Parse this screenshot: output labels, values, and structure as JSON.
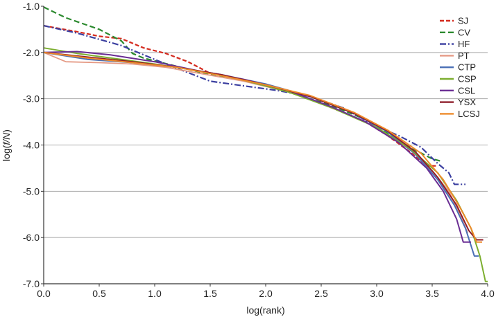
{
  "chart_data": {
    "type": "line",
    "title": "",
    "xlabel": "log(rank)",
    "ylabel_prefix": "log(",
    "ylabel_italic": "f/N",
    "ylabel_suffix": ")",
    "xlim": [
      0.0,
      4.0
    ],
    "ylim": [
      -7.0,
      -1.0
    ],
    "x_ticks": [
      {
        "value": 0.0,
        "label": "0.0"
      },
      {
        "value": 0.5,
        "label": "0.5"
      },
      {
        "value": 1.0,
        "label": "1.0"
      },
      {
        "value": 1.5,
        "label": "1.5"
      },
      {
        "value": 2.0,
        "label": "2.0"
      },
      {
        "value": 2.5,
        "label": "2.5"
      },
      {
        "value": 3.0,
        "label": "3.0"
      },
      {
        "value": 3.5,
        "label": "3.5"
      },
      {
        "value": 4.0,
        "label": "4.0"
      }
    ],
    "y_ticks": [
      {
        "value": -1.0,
        "label": "-1.0"
      },
      {
        "value": -2.0,
        "label": "-2.0"
      },
      {
        "value": -3.0,
        "label": "-3.0"
      },
      {
        "value": -4.0,
        "label": "-4.0"
      },
      {
        "value": -5.0,
        "label": "-5.0"
      },
      {
        "value": -6.0,
        "label": "-6.0"
      },
      {
        "value": -7.0,
        "label": "-7.0"
      }
    ],
    "grid": "horizontal",
    "legend_position": "top-right",
    "series": [
      {
        "name": "SJ",
        "color": "#d42a1e",
        "dash": "6,3",
        "width": 2.2,
        "points": [
          [
            0,
            -1.42
          ],
          [
            0.3,
            -1.55
          ],
          [
            0.5,
            -1.65
          ],
          [
            0.7,
            -1.7
          ],
          [
            0.9,
            -1.9
          ],
          [
            1.1,
            -2.02
          ],
          [
            1.3,
            -2.2
          ],
          [
            1.5,
            -2.45
          ],
          [
            1.7,
            -2.55
          ],
          [
            2.0,
            -2.72
          ],
          [
            2.3,
            -2.92
          ],
          [
            2.6,
            -3.2
          ],
          [
            2.9,
            -3.5
          ],
          [
            3.1,
            -3.8
          ],
          [
            3.3,
            -4.15
          ],
          [
            3.45,
            -4.45
          ],
          [
            3.55,
            -4.45
          ]
        ]
      },
      {
        "name": "CV",
        "color": "#2c8a2f",
        "dash": "8,4",
        "width": 2.2,
        "points": [
          [
            0,
            -1.02
          ],
          [
            0.2,
            -1.25
          ],
          [
            0.5,
            -1.5
          ],
          [
            0.7,
            -1.75
          ],
          [
            0.8,
            -2.02
          ],
          [
            0.9,
            -2.12
          ],
          [
            1.2,
            -2.3
          ],
          [
            1.5,
            -2.48
          ],
          [
            1.8,
            -2.6
          ],
          [
            2.2,
            -2.85
          ],
          [
            2.6,
            -3.15
          ],
          [
            2.9,
            -3.45
          ],
          [
            3.1,
            -3.75
          ],
          [
            3.3,
            -4.05
          ],
          [
            3.5,
            -4.3
          ],
          [
            3.58,
            -4.35
          ]
        ]
      },
      {
        "name": "HF",
        "color": "#3b3fa0",
        "dash": "9,3,2,3",
        "width": 2.2,
        "points": [
          [
            0,
            -1.42
          ],
          [
            0.3,
            -1.58
          ],
          [
            0.7,
            -1.85
          ],
          [
            0.9,
            -2.05
          ],
          [
            1.1,
            -2.25
          ],
          [
            1.5,
            -2.62
          ],
          [
            1.8,
            -2.72
          ],
          [
            2.1,
            -2.82
          ],
          [
            2.4,
            -2.95
          ],
          [
            2.7,
            -3.2
          ],
          [
            3.0,
            -3.6
          ],
          [
            3.2,
            -3.8
          ],
          [
            3.4,
            -4.05
          ],
          [
            3.55,
            -4.4
          ],
          [
            3.65,
            -4.6
          ],
          [
            3.7,
            -4.85
          ],
          [
            3.8,
            -4.85
          ]
        ]
      },
      {
        "name": "PT",
        "color": "#e59a85",
        "dash": "",
        "width": 1.8,
        "points": [
          [
            0,
            -2.0
          ],
          [
            0.2,
            -2.2
          ],
          [
            0.5,
            -2.22
          ],
          [
            0.8,
            -2.25
          ],
          [
            1.1,
            -2.32
          ],
          [
            1.4,
            -2.45
          ],
          [
            1.8,
            -2.62
          ],
          [
            2.2,
            -2.85
          ],
          [
            2.6,
            -3.18
          ],
          [
            3.0,
            -3.62
          ],
          [
            3.3,
            -4.1
          ],
          [
            3.5,
            -4.55
          ],
          [
            3.65,
            -5.0
          ],
          [
            3.75,
            -5.5
          ],
          [
            3.82,
            -5.9
          ]
        ]
      },
      {
        "name": "CTP",
        "color": "#4a6fb5",
        "dash": "",
        "width": 2.0,
        "points": [
          [
            0,
            -2.0
          ],
          [
            0.4,
            -2.15
          ],
          [
            0.8,
            -2.22
          ],
          [
            1.2,
            -2.32
          ],
          [
            1.6,
            -2.48
          ],
          [
            2.0,
            -2.68
          ],
          [
            2.4,
            -2.95
          ],
          [
            2.8,
            -3.32
          ],
          [
            3.1,
            -3.72
          ],
          [
            3.35,
            -4.2
          ],
          [
            3.55,
            -4.75
          ],
          [
            3.7,
            -5.3
          ],
          [
            3.8,
            -5.8
          ],
          [
            3.88,
            -6.4
          ],
          [
            3.92,
            -6.4
          ]
        ]
      },
      {
        "name": "CSP",
        "color": "#7cae2f",
        "dash": "",
        "width": 2.0,
        "points": [
          [
            0,
            -1.9
          ],
          [
            0.3,
            -2.02
          ],
          [
            0.7,
            -2.15
          ],
          [
            1.0,
            -2.25
          ],
          [
            1.4,
            -2.4
          ],
          [
            1.8,
            -2.6
          ],
          [
            2.2,
            -2.85
          ],
          [
            2.6,
            -3.2
          ],
          [
            3.0,
            -3.62
          ],
          [
            3.3,
            -4.08
          ],
          [
            3.55,
            -4.6
          ],
          [
            3.72,
            -5.2
          ],
          [
            3.85,
            -5.8
          ],
          [
            3.93,
            -6.4
          ],
          [
            3.98,
            -6.95
          ],
          [
            4.0,
            -6.95
          ]
        ]
      },
      {
        "name": "CSL",
        "color": "#6a2d93",
        "dash": "",
        "width": 2.0,
        "points": [
          [
            0,
            -2.0
          ],
          [
            0.3,
            -1.98
          ],
          [
            0.6,
            -2.05
          ],
          [
            1.0,
            -2.2
          ],
          [
            1.4,
            -2.4
          ],
          [
            1.8,
            -2.58
          ],
          [
            2.2,
            -2.82
          ],
          [
            2.6,
            -3.18
          ],
          [
            2.9,
            -3.5
          ],
          [
            3.2,
            -3.95
          ],
          [
            3.45,
            -4.5
          ],
          [
            3.6,
            -5.0
          ],
          [
            3.72,
            -5.6
          ],
          [
            3.78,
            -6.1
          ],
          [
            3.85,
            -6.1
          ]
        ]
      },
      {
        "name": "YSX",
        "color": "#8e1d2a",
        "dash": "",
        "width": 2.0,
        "points": [
          [
            0,
            -2.0
          ],
          [
            0.4,
            -2.1
          ],
          [
            0.8,
            -2.2
          ],
          [
            1.2,
            -2.32
          ],
          [
            1.6,
            -2.48
          ],
          [
            2.0,
            -2.7
          ],
          [
            2.4,
            -2.95
          ],
          [
            2.8,
            -3.32
          ],
          [
            3.1,
            -3.7
          ],
          [
            3.35,
            -4.15
          ],
          [
            3.55,
            -4.7
          ],
          [
            3.72,
            -5.3
          ],
          [
            3.83,
            -5.85
          ],
          [
            3.9,
            -6.05
          ],
          [
            3.96,
            -6.05
          ]
        ]
      },
      {
        "name": "LCSJ",
        "color": "#ee8a2a",
        "dash": "",
        "width": 2.0,
        "points": [
          [
            0,
            -2.0
          ],
          [
            0.4,
            -2.12
          ],
          [
            0.8,
            -2.22
          ],
          [
            1.2,
            -2.32
          ],
          [
            1.6,
            -2.5
          ],
          [
            2.0,
            -2.7
          ],
          [
            2.4,
            -2.93
          ],
          [
            2.8,
            -3.3
          ],
          [
            3.1,
            -3.68
          ],
          [
            3.4,
            -4.18
          ],
          [
            3.6,
            -4.75
          ],
          [
            3.75,
            -5.35
          ],
          [
            3.85,
            -5.8
          ],
          [
            3.9,
            -6.1
          ],
          [
            3.95,
            -6.1
          ]
        ]
      }
    ]
  }
}
